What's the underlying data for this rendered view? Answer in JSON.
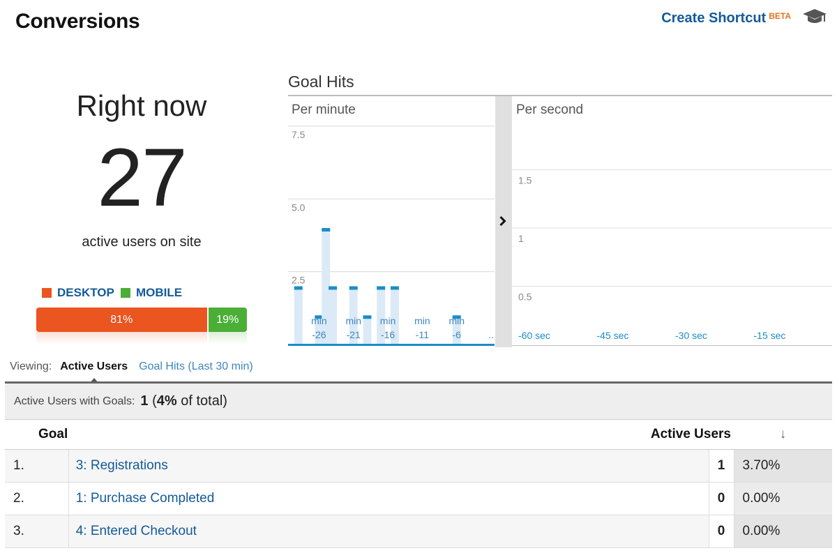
{
  "header": {
    "title": "Conversions",
    "shortcut_label": "Create Shortcut",
    "shortcut_badge": "BETA",
    "help_icon": "graduation-cap-icon"
  },
  "right_now": {
    "label": "Right now",
    "value": "27",
    "caption": "active users on site",
    "devices": [
      {
        "label": "DESKTOP",
        "percent_label": "81%",
        "share": 0.81,
        "color": "#ea5520"
      },
      {
        "label": "MOBILE",
        "percent_label": "19%",
        "share": 0.19,
        "color": "#4aae37"
      }
    ]
  },
  "goal_hits": {
    "title": "Goal Hits",
    "toggle_icon": "chevron-right-icon"
  },
  "chart_data": [
    {
      "type": "bar",
      "title": "Per minute",
      "ylim": [
        0,
        8
      ],
      "yticks": [
        "2.5",
        "5.0",
        "7.5"
      ],
      "ytick_values": [
        2.5,
        5.0,
        7.5
      ],
      "x": [
        -30,
        -29,
        -28,
        -27,
        -26,
        -25,
        -24,
        -23,
        -22,
        -21,
        -20,
        -19,
        -18,
        -17,
        -16,
        -15,
        -14,
        -13,
        -12,
        -11,
        -10,
        -9,
        -8,
        -7,
        -6,
        -5,
        -4,
        -3,
        -2,
        -1
      ],
      "values": [
        0,
        2,
        0,
        0,
        1,
        4,
        2,
        0,
        0,
        2,
        0,
        1,
        0,
        2,
        0,
        2,
        0,
        0,
        0,
        0,
        0,
        0,
        0,
        0,
        1,
        0,
        0,
        0,
        0,
        0
      ],
      "xtick_labels": [
        {
          "x": -26,
          "top": "min",
          "bottom": "-26"
        },
        {
          "x": -21,
          "top": "min",
          "bottom": "-21"
        },
        {
          "x": -16,
          "top": "min",
          "bottom": "-16"
        },
        {
          "x": -11,
          "top": "min",
          "bottom": "-11"
        },
        {
          "x": -6,
          "top": "min",
          "bottom": "-6"
        },
        {
          "x": -1,
          "top": "",
          "bottom": ".."
        }
      ],
      "bar_color": "#1b8cc7"
    },
    {
      "type": "bar",
      "title": "Per second",
      "ylim": [
        0,
        2
      ],
      "yticks": [
        "0.5",
        "1",
        "1.5"
      ],
      "ytick_values": [
        0.5,
        1,
        1.5
      ],
      "xticks": [
        "-60 sec",
        "-45 sec",
        "-30 sec",
        "-15 sec"
      ],
      "xtick_values": [
        -60,
        -45,
        -30,
        -15
      ],
      "xlim": [
        -60,
        0
      ],
      "values": []
    }
  ],
  "viewing": {
    "label": "Viewing:",
    "active_tab": "Active Users",
    "other_tab": "Goal Hits (Last 30 min)"
  },
  "table": {
    "summary_label": "Active Users with Goals:",
    "summary_value": "1",
    "summary_paren_open": "(",
    "summary_pct": "4%",
    "summary_suffix": "of total)",
    "columns": {
      "goal": "Goal",
      "active_users": "Active Users"
    },
    "sort_icon": "arrow-down-icon",
    "rows": [
      {
        "num": "1.",
        "goal": "3: Registrations",
        "count": "1",
        "pct": "3.70%"
      },
      {
        "num": "2.",
        "goal": "1: Purchase Completed",
        "count": "0",
        "pct": "0.00%"
      },
      {
        "num": "3.",
        "goal": "4: Entered Checkout",
        "count": "0",
        "pct": "0.00%"
      }
    ]
  }
}
